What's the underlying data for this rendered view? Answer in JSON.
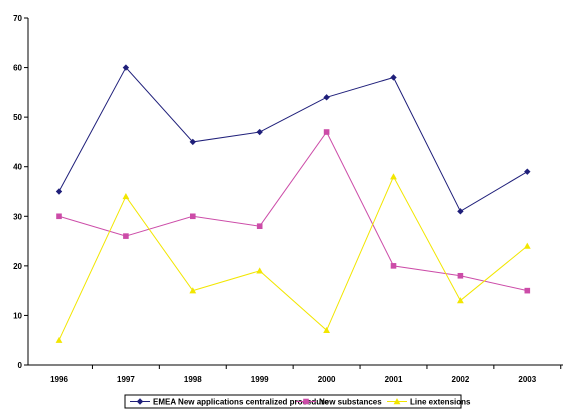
{
  "chart_data": {
    "type": "line",
    "title": "",
    "xlabel": "",
    "ylabel": "",
    "categories": [
      "1996",
      "1997",
      "1998",
      "1999",
      "2000",
      "2001",
      "2002",
      "2003"
    ],
    "ylim": [
      0,
      70
    ],
    "yticks": [
      0,
      10,
      20,
      30,
      40,
      50,
      60,
      70
    ],
    "grid": false,
    "legend_position": "bottom",
    "series": [
      {
        "name": "EMEA New applications centralized procedure",
        "values": [
          35,
          60,
          45,
          47,
          54,
          58,
          31,
          39
        ],
        "color": "#1f1f7a",
        "marker": "diamond"
      },
      {
        "name": "New substances",
        "values": [
          30,
          26,
          30,
          28,
          47,
          20,
          18,
          15
        ],
        "color": "#cc4ca8",
        "marker": "square"
      },
      {
        "name": "Line extensions",
        "values": [
          5,
          34,
          15,
          19,
          7,
          38,
          13,
          24
        ],
        "color": "#f2e600",
        "marker": "triangle"
      }
    ]
  }
}
